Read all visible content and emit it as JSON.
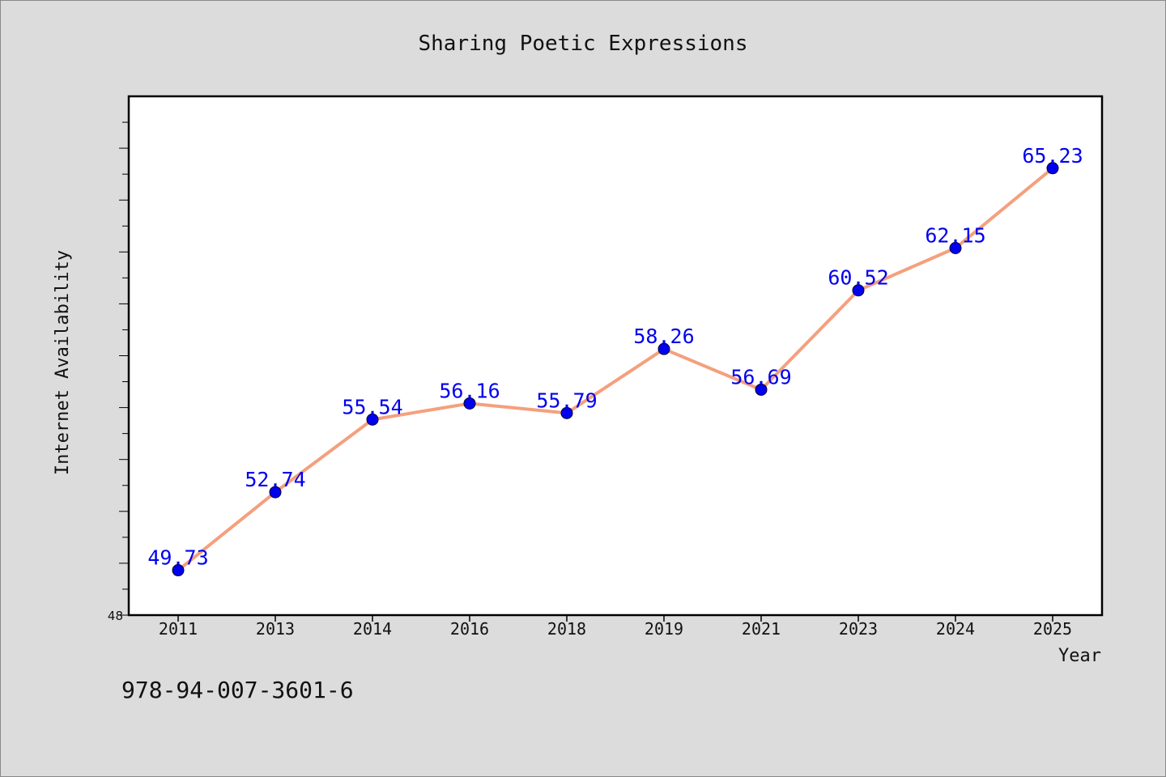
{
  "chart_data": {
    "type": "line",
    "title": "Sharing Poetic Expressions",
    "xlabel": "Year",
    "ylabel": "Internet Availability",
    "categories": [
      "2011",
      "2013",
      "2014",
      "2016",
      "2018",
      "2019",
      "2021",
      "2023",
      "2024",
      "2025"
    ],
    "series": [
      {
        "values": [
          49.73,
          52.74,
          55.54,
          56.16,
          55.79,
          58.26,
          56.69,
          60.52,
          62.15,
          65.23
        ]
      }
    ],
    "data_labels": [
      "49.73",
      "52.74",
      "55.54",
      "56.16",
      "55.79",
      "58.26",
      "56.69",
      "60.52",
      "62.15",
      "65.23"
    ],
    "ylim": [
      48,
      68
    ],
    "y_min_label": "48",
    "grid": false,
    "line_color": "#f4a07e",
    "marker_color": "#0000ee",
    "label_color": "#0000ee"
  },
  "footer": {
    "isbn": "978-94-007-3601-6"
  }
}
